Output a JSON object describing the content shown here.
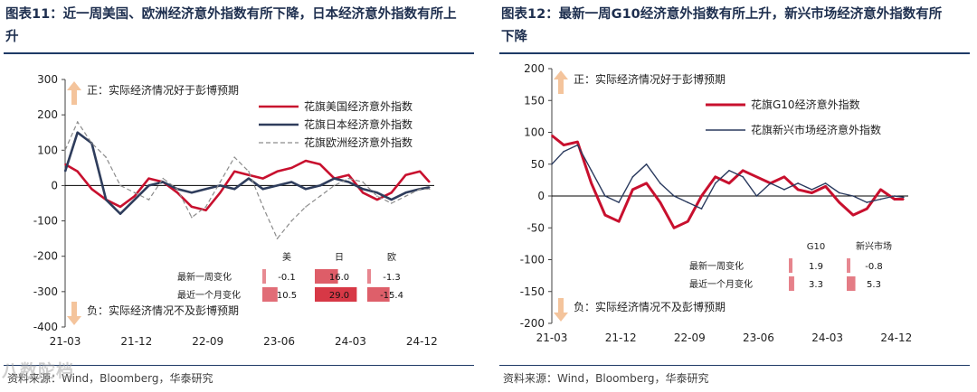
{
  "left": {
    "title": "图表11：近一周美国、欧洲经济意外指数有所下降，日本经济意外指数有所上升",
    "source": "资料来源：Wind，Bloomberg，华泰研究",
    "positive_note": "正：实际经济情况好于彭博预期",
    "negative_note": "负：实际经济情况不及彭博预期",
    "table": {
      "columns": [
        "美",
        "日",
        "欧"
      ],
      "rows": [
        {
          "label": "最新一周变化",
          "values": [
            "-0.1",
            "16.0",
            "-1.3"
          ]
        },
        {
          "label": "最近一个月变化",
          "values": [
            "10.5",
            "29.0",
            "-15.4"
          ]
        }
      ]
    },
    "colors": {
      "us": "#c8102e",
      "jp": "#2f3d5c",
      "eu": "#8c8c8c",
      "arrow": "#f4c49c"
    }
  },
  "right": {
    "title": "图表12：最新一周G10经济意外指数有所上升，新兴市场经济意外指数有所下降",
    "source": "资料来源：Wind，Bloomberg，华泰研究",
    "positive_note": "正：实际经济情况好于彭博预期",
    "negative_note": "负：实际经济情况不及彭博预期",
    "table": {
      "columns": [
        "G10",
        "新兴市场"
      ],
      "rows": [
        {
          "label": "最新一周变化",
          "values": [
            "1.9",
            "-0.8"
          ]
        },
        {
          "label": "最近一个月变化",
          "values": [
            "3.3",
            "5.3"
          ]
        }
      ]
    },
    "colors": {
      "g10": "#c8102e",
      "em": "#2a3a5e",
      "arrow": "#f4c49c"
    }
  },
  "watermark": "八数陀档",
  "chart_data": [
    {
      "type": "line",
      "title": "图表11：近一周美国、欧洲经济意外指数有所下降，日本经济意外指数有所上升",
      "xlabel": "",
      "ylabel": "",
      "ylim": [
        -400,
        300
      ],
      "yticks": [
        300,
        200,
        100,
        0,
        -100,
        -200,
        -300,
        -400
      ],
      "xticks": [
        "21-03",
        "21-12",
        "22-09",
        "23-06",
        "24-03",
        "24-12"
      ],
      "legend_position": "top-right",
      "grid": false,
      "series": [
        {
          "name": "花旗美国经济意外指数",
          "style": "solid-thick",
          "x": [
            2021.17,
            2021.3,
            2021.45,
            2021.6,
            2021.75,
            2021.9,
            2022.05,
            2022.2,
            2022.35,
            2022.5,
            2022.65,
            2022.8,
            2022.95,
            2023.1,
            2023.25,
            2023.4,
            2023.55,
            2023.7,
            2023.85,
            2024.0,
            2024.15,
            2024.3,
            2024.45,
            2024.6,
            2024.75,
            2024.9,
            2025.0
          ],
          "y": [
            60,
            40,
            -10,
            -40,
            -60,
            -30,
            20,
            10,
            -20,
            -60,
            -70,
            -20,
            40,
            30,
            20,
            40,
            50,
            70,
            60,
            20,
            30,
            -20,
            -40,
            -20,
            30,
            40,
            10
          ]
        },
        {
          "name": "花旗日本经济意外指数",
          "style": "solid-thick",
          "x": [
            2021.17,
            2021.3,
            2021.45,
            2021.6,
            2021.75,
            2021.9,
            2022.05,
            2022.2,
            2022.35,
            2022.5,
            2022.65,
            2022.8,
            2022.95,
            2023.1,
            2023.25,
            2023.4,
            2023.55,
            2023.7,
            2023.85,
            2024.0,
            2024.15,
            2024.3,
            2024.45,
            2024.6,
            2024.75,
            2024.9,
            2025.0
          ],
          "y": [
            40,
            150,
            120,
            -40,
            -80,
            -40,
            0,
            10,
            -10,
            -20,
            -10,
            0,
            -10,
            20,
            -10,
            0,
            10,
            -10,
            0,
            20,
            10,
            -10,
            -20,
            -40,
            -20,
            -10,
            -5
          ]
        },
        {
          "name": "花旗欧洲经济意外指数",
          "style": "dashed",
          "x": [
            2021.17,
            2021.3,
            2021.45,
            2021.6,
            2021.75,
            2021.9,
            2022.05,
            2022.2,
            2022.35,
            2022.5,
            2022.65,
            2022.8,
            2022.95,
            2023.1,
            2023.25,
            2023.4,
            2023.55,
            2023.7,
            2023.85,
            2024.0,
            2024.15,
            2024.3,
            2024.45,
            2024.6,
            2024.75,
            2024.9,
            2025.0
          ],
          "y": [
            100,
            180,
            120,
            80,
            0,
            -20,
            -40,
            20,
            -10,
            -90,
            -60,
            10,
            80,
            40,
            -60,
            -150,
            -100,
            -60,
            -30,
            0,
            20,
            10,
            -30,
            -50,
            -30,
            -10,
            -10
          ]
        }
      ]
    },
    {
      "type": "line",
      "title": "图表12：最新一周G10经济意外指数有所上升，新兴市场经济意外指数有所下降",
      "xlabel": "",
      "ylabel": "",
      "ylim": [
        -200,
        200
      ],
      "yticks": [
        200,
        150,
        100,
        50,
        0,
        -50,
        -100,
        -150,
        -200
      ],
      "xticks": [
        "21-03",
        "21-12",
        "22-09",
        "23-06",
        "24-03",
        "24-12"
      ],
      "legend_position": "top-right",
      "grid": false,
      "series": [
        {
          "name": "花旗G10经济意外指数",
          "style": "solid-thick",
          "x": [
            2021.17,
            2021.3,
            2021.45,
            2021.6,
            2021.75,
            2021.9,
            2022.05,
            2022.2,
            2022.35,
            2022.5,
            2022.65,
            2022.8,
            2022.95,
            2023.1,
            2023.25,
            2023.4,
            2023.55,
            2023.7,
            2023.85,
            2024.0,
            2024.15,
            2024.3,
            2024.45,
            2024.6,
            2024.75,
            2024.9,
            2025.0
          ],
          "y": [
            95,
            80,
            85,
            20,
            -30,
            -40,
            10,
            20,
            -10,
            -50,
            -40,
            0,
            30,
            20,
            40,
            30,
            20,
            30,
            10,
            5,
            15,
            -10,
            -30,
            -20,
            10,
            -5,
            -5
          ]
        },
        {
          "name": "花旗新兴市场经济意外指数",
          "style": "solid-thin",
          "x": [
            2021.17,
            2021.3,
            2021.45,
            2021.6,
            2021.75,
            2021.9,
            2022.05,
            2022.2,
            2022.35,
            2022.5,
            2022.65,
            2022.8,
            2022.95,
            2023.1,
            2023.25,
            2023.4,
            2023.55,
            2023.7,
            2023.85,
            2024.0,
            2024.15,
            2024.3,
            2024.45,
            2024.6,
            2024.75,
            2024.9,
            2025.0
          ],
          "y": [
            50,
            70,
            80,
            40,
            0,
            -10,
            30,
            50,
            20,
            0,
            -10,
            -20,
            20,
            40,
            30,
            0,
            20,
            10,
            20,
            10,
            20,
            5,
            0,
            -10,
            -5,
            0,
            -2
          ]
        }
      ]
    }
  ]
}
